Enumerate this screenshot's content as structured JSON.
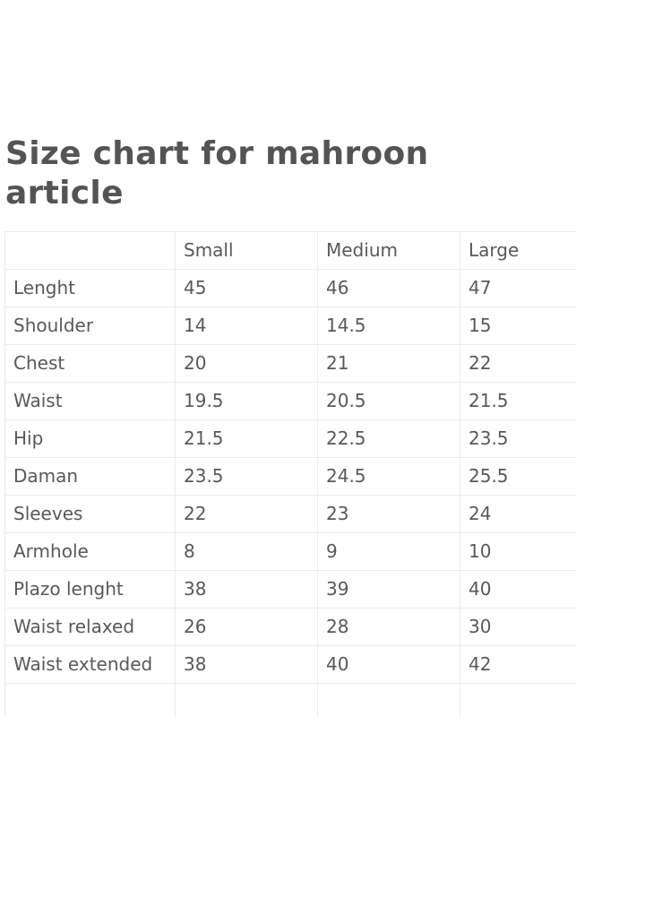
{
  "title": "Size chart for mahroon article",
  "table": {
    "headers": [
      "",
      "Small",
      "Medium",
      "Large"
    ],
    "rows": [
      [
        "Lenght",
        "45",
        "46",
        "47"
      ],
      [
        "Shoulder",
        "14",
        "14.5",
        "15"
      ],
      [
        "Chest",
        "20",
        "21",
        "22"
      ],
      [
        "Waist",
        "19.5",
        "20.5",
        "21.5"
      ],
      [
        "Hip",
        "21.5",
        "22.5",
        "23.5"
      ],
      [
        "Daman",
        "23.5",
        "24.5",
        "25.5"
      ],
      [
        "Sleeves",
        "22",
        "23",
        "24"
      ],
      [
        "Armhole",
        "8",
        "9",
        "10"
      ],
      [
        "Plazo lenght",
        "38",
        "39",
        "40"
      ],
      [
        "Waist relaxed",
        "26",
        "28",
        "30"
      ],
      [
        "Waist extended",
        "38",
        "40",
        "42"
      ]
    ]
  }
}
